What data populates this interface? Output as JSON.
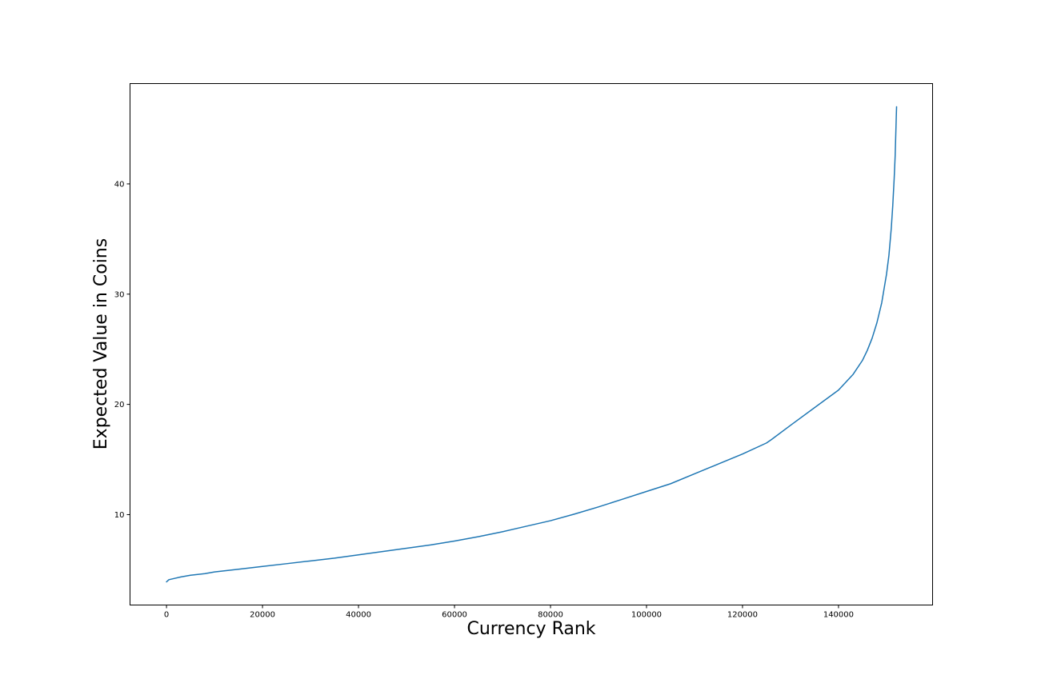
{
  "chart_data": {
    "type": "line",
    "title": "",
    "xlabel": "Currency Rank",
    "ylabel": "Expected Value in Coins",
    "xlim": [
      -7600,
      159600
    ],
    "ylim": [
      1.8,
      49.1
    ],
    "xticks": [
      0,
      20000,
      40000,
      60000,
      80000,
      100000,
      120000,
      140000
    ],
    "yticks": [
      10,
      20,
      30,
      40
    ],
    "grid": false,
    "legend": "none",
    "series": [
      {
        "color": "#1f77b4",
        "x": [
          0,
          500,
          1500,
          3000,
          5000,
          8000,
          10000,
          15000,
          20000,
          25000,
          30000,
          35000,
          40000,
          45000,
          50000,
          55000,
          60000,
          65000,
          70000,
          75000,
          80000,
          85000,
          90000,
          95000,
          100000,
          105000,
          110000,
          115000,
          120000,
          125000,
          126000,
          130000,
          135000,
          140000,
          143000,
          145000,
          146000,
          147000,
          148000,
          149000,
          150000,
          150500,
          151000,
          151300,
          151600,
          151800,
          151900,
          152000,
          152050,
          152100
        ],
        "y": [
          3.9,
          4.1,
          4.2,
          4.35,
          4.5,
          4.65,
          4.8,
          5.05,
          5.3,
          5.55,
          5.8,
          6.05,
          6.35,
          6.65,
          6.95,
          7.25,
          7.6,
          8.0,
          8.45,
          8.95,
          9.45,
          10.05,
          10.7,
          11.4,
          12.1,
          12.8,
          13.7,
          14.6,
          15.5,
          16.5,
          16.8,
          18.1,
          19.7,
          21.3,
          22.7,
          24.0,
          24.9,
          26.0,
          27.4,
          29.2,
          31.8,
          33.5,
          36.0,
          38.0,
          40.5,
          42.5,
          44.0,
          45.5,
          46.3,
          47.0
        ]
      }
    ]
  }
}
